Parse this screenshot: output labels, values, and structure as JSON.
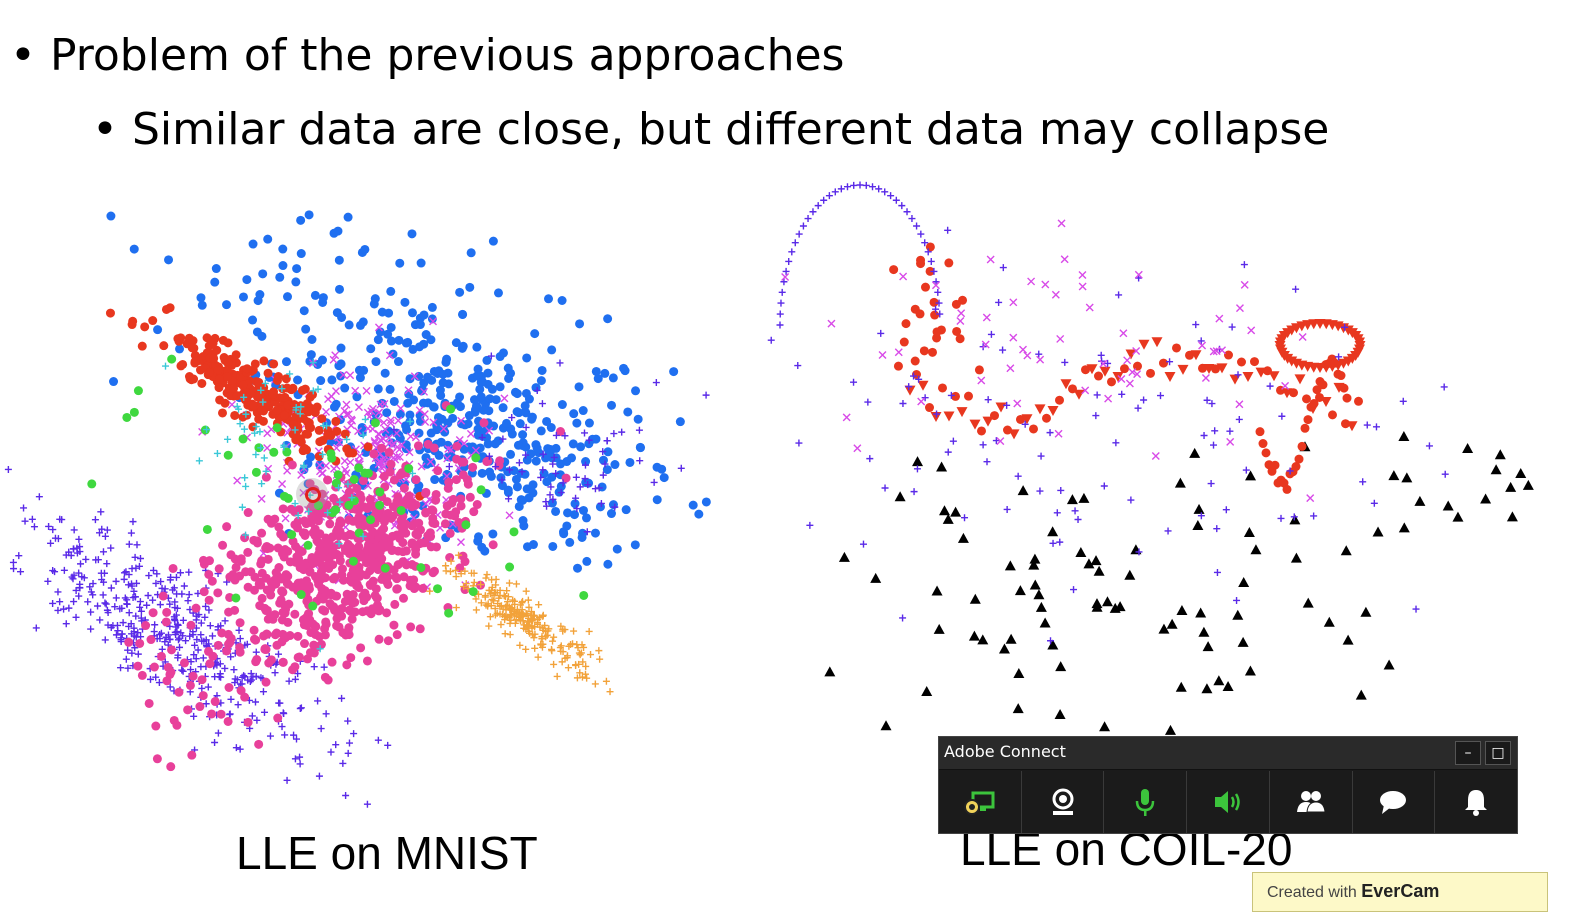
{
  "slide": {
    "bullet1": "Problem of the previous approaches",
    "bullet2": "Similar data are close, but different data may collapse",
    "bullet_glyph": "•",
    "caption_left": "LLE on MNIST",
    "caption_right": "LLE on COIL-20"
  },
  "adobe_connect": {
    "title": "Adobe Connect",
    "minimize_label": "–",
    "maximize_label": "□",
    "buttons": [
      {
        "name": "share-screen-icon",
        "color": "#3cc43c"
      },
      {
        "name": "webcam-icon",
        "color": "#ffffff"
      },
      {
        "name": "microphone-icon",
        "color": "#3cc43c"
      },
      {
        "name": "speaker-icon",
        "color": "#3cc43c"
      },
      {
        "name": "attendees-icon",
        "color": "#ffffff"
      },
      {
        "name": "chat-icon",
        "color": "#ffffff"
      },
      {
        "name": "notifications-icon",
        "color": "#ffffff"
      }
    ]
  },
  "watermark": {
    "prefix": "Created with",
    "brand": "EverCam"
  },
  "colors": {
    "red": "#e8371f",
    "blue": "#1f6ff0",
    "pink": "#e8409a",
    "magenta": "#d84ae8",
    "orange": "#f2a23a",
    "green": "#3fd83f",
    "cyan": "#3ac8d8",
    "purple": "#5a2ae8",
    "black": "#000000"
  }
}
